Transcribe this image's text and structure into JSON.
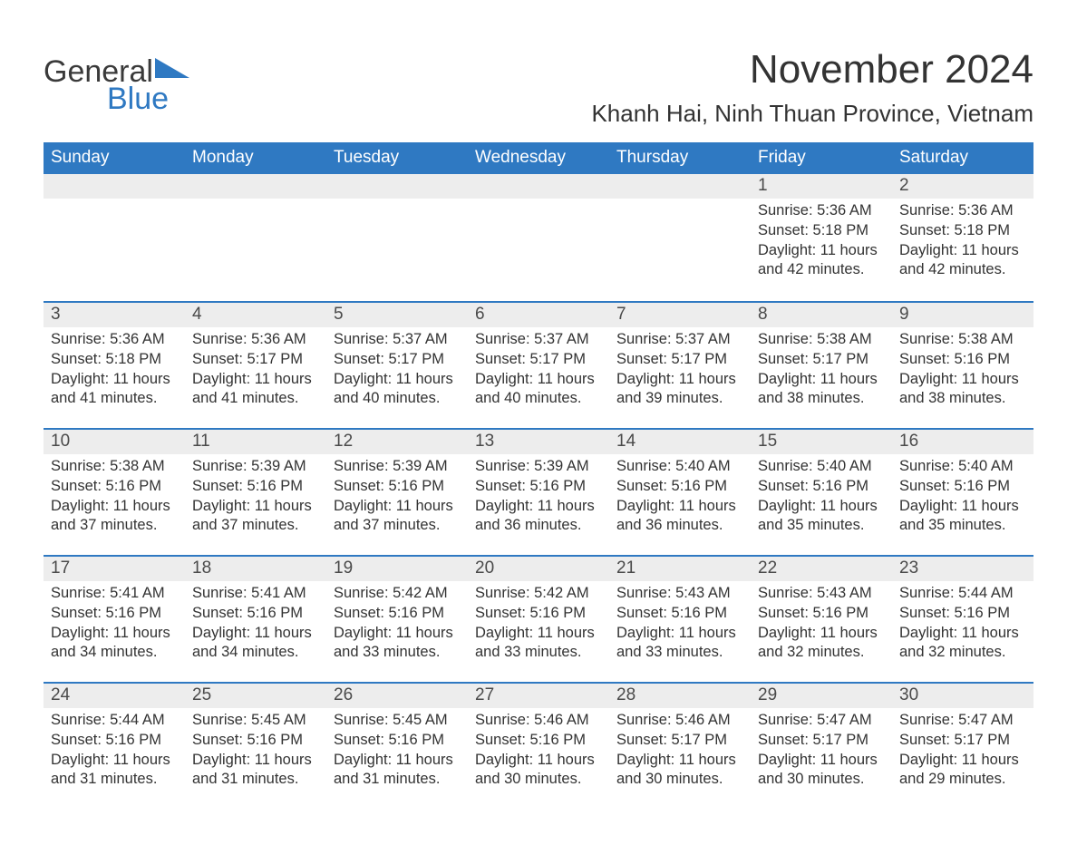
{
  "brand": {
    "word1": "General",
    "word2": "Blue",
    "tri_color": "#2f79c2"
  },
  "title": "November 2024",
  "location": "Khanh Hai, Ninh Thuan Province, Vietnam",
  "header_bg": "#2f79c2",
  "stripe_bg": "#ededed",
  "weekdays": [
    "Sunday",
    "Monday",
    "Tuesday",
    "Wednesday",
    "Thursday",
    "Friday",
    "Saturday"
  ],
  "label": {
    "sunrise": "Sunrise: ",
    "sunset": "Sunset: ",
    "daylight": "Daylight: "
  },
  "weeks": [
    [
      null,
      null,
      null,
      null,
      null,
      {
        "n": "1",
        "sr": "5:36 AM",
        "ss": "5:18 PM",
        "dl": "11 hours and 42 minutes."
      },
      {
        "n": "2",
        "sr": "5:36 AM",
        "ss": "5:18 PM",
        "dl": "11 hours and 42 minutes."
      }
    ],
    [
      {
        "n": "3",
        "sr": "5:36 AM",
        "ss": "5:18 PM",
        "dl": "11 hours and 41 minutes."
      },
      {
        "n": "4",
        "sr": "5:36 AM",
        "ss": "5:17 PM",
        "dl": "11 hours and 41 minutes."
      },
      {
        "n": "5",
        "sr": "5:37 AM",
        "ss": "5:17 PM",
        "dl": "11 hours and 40 minutes."
      },
      {
        "n": "6",
        "sr": "5:37 AM",
        "ss": "5:17 PM",
        "dl": "11 hours and 40 minutes."
      },
      {
        "n": "7",
        "sr": "5:37 AM",
        "ss": "5:17 PM",
        "dl": "11 hours and 39 minutes."
      },
      {
        "n": "8",
        "sr": "5:38 AM",
        "ss": "5:17 PM",
        "dl": "11 hours and 38 minutes."
      },
      {
        "n": "9",
        "sr": "5:38 AM",
        "ss": "5:16 PM",
        "dl": "11 hours and 38 minutes."
      }
    ],
    [
      {
        "n": "10",
        "sr": "5:38 AM",
        "ss": "5:16 PM",
        "dl": "11 hours and 37 minutes."
      },
      {
        "n": "11",
        "sr": "5:39 AM",
        "ss": "5:16 PM",
        "dl": "11 hours and 37 minutes."
      },
      {
        "n": "12",
        "sr": "5:39 AM",
        "ss": "5:16 PM",
        "dl": "11 hours and 37 minutes."
      },
      {
        "n": "13",
        "sr": "5:39 AM",
        "ss": "5:16 PM",
        "dl": "11 hours and 36 minutes."
      },
      {
        "n": "14",
        "sr": "5:40 AM",
        "ss": "5:16 PM",
        "dl": "11 hours and 36 minutes."
      },
      {
        "n": "15",
        "sr": "5:40 AM",
        "ss": "5:16 PM",
        "dl": "11 hours and 35 minutes."
      },
      {
        "n": "16",
        "sr": "5:40 AM",
        "ss": "5:16 PM",
        "dl": "11 hours and 35 minutes."
      }
    ],
    [
      {
        "n": "17",
        "sr": "5:41 AM",
        "ss": "5:16 PM",
        "dl": "11 hours and 34 minutes."
      },
      {
        "n": "18",
        "sr": "5:41 AM",
        "ss": "5:16 PM",
        "dl": "11 hours and 34 minutes."
      },
      {
        "n": "19",
        "sr": "5:42 AM",
        "ss": "5:16 PM",
        "dl": "11 hours and 33 minutes."
      },
      {
        "n": "20",
        "sr": "5:42 AM",
        "ss": "5:16 PM",
        "dl": "11 hours and 33 minutes."
      },
      {
        "n": "21",
        "sr": "5:43 AM",
        "ss": "5:16 PM",
        "dl": "11 hours and 33 minutes."
      },
      {
        "n": "22",
        "sr": "5:43 AM",
        "ss": "5:16 PM",
        "dl": "11 hours and 32 minutes."
      },
      {
        "n": "23",
        "sr": "5:44 AM",
        "ss": "5:16 PM",
        "dl": "11 hours and 32 minutes."
      }
    ],
    [
      {
        "n": "24",
        "sr": "5:44 AM",
        "ss": "5:16 PM",
        "dl": "11 hours and 31 minutes."
      },
      {
        "n": "25",
        "sr": "5:45 AM",
        "ss": "5:16 PM",
        "dl": "11 hours and 31 minutes."
      },
      {
        "n": "26",
        "sr": "5:45 AM",
        "ss": "5:16 PM",
        "dl": "11 hours and 31 minutes."
      },
      {
        "n": "27",
        "sr": "5:46 AM",
        "ss": "5:16 PM",
        "dl": "11 hours and 30 minutes."
      },
      {
        "n": "28",
        "sr": "5:46 AM",
        "ss": "5:17 PM",
        "dl": "11 hours and 30 minutes."
      },
      {
        "n": "29",
        "sr": "5:47 AM",
        "ss": "5:17 PM",
        "dl": "11 hours and 30 minutes."
      },
      {
        "n": "30",
        "sr": "5:47 AM",
        "ss": "5:17 PM",
        "dl": "11 hours and 29 minutes."
      }
    ]
  ]
}
